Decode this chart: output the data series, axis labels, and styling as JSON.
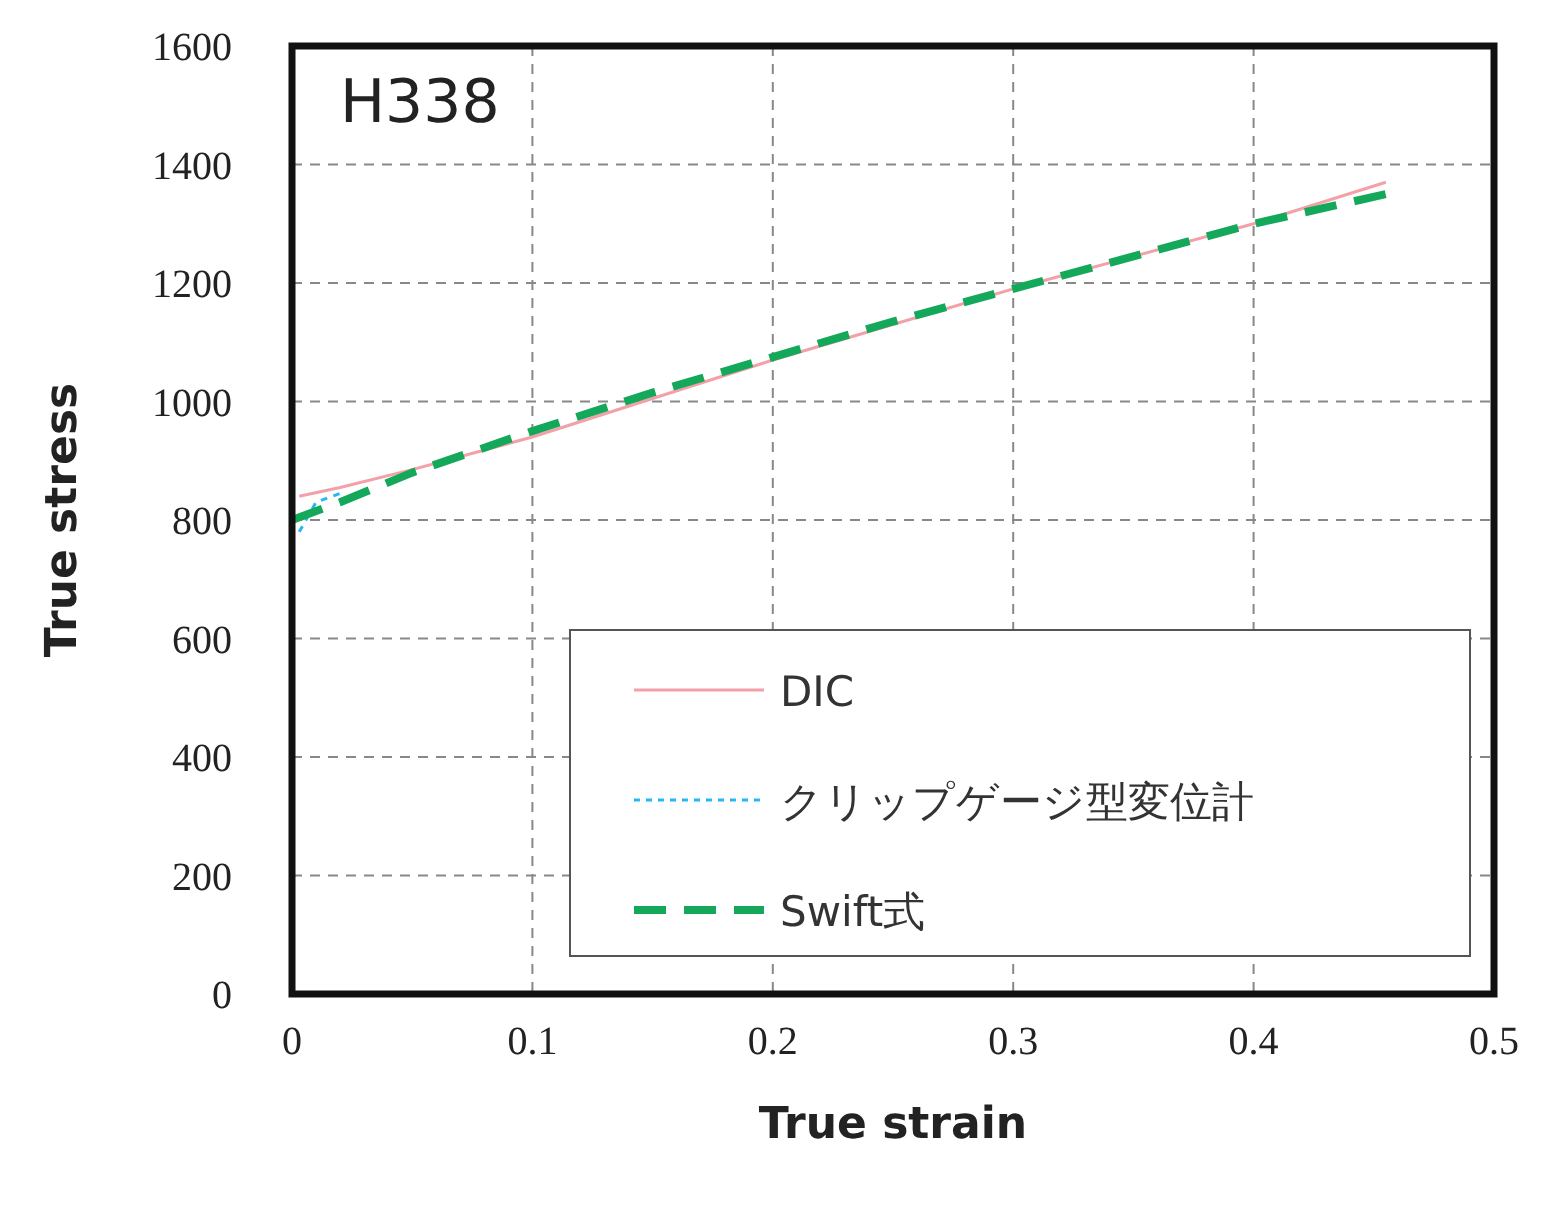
{
  "chart_data": {
    "type": "line",
    "title": "H338",
    "xlabel": "True strain",
    "ylabel": "True stress",
    "xlim": [
      0,
      0.5
    ],
    "ylim": [
      0,
      1600
    ],
    "xticks": [
      0,
      0.1,
      0.2,
      0.3,
      0.4,
      0.5
    ],
    "yticks": [
      0,
      200,
      400,
      600,
      800,
      1000,
      1200,
      1400,
      1600
    ],
    "grid": true,
    "legend": "bottom right",
    "series": [
      {
        "name": "DIC",
        "color": "#f4a0a8",
        "line_style": "solid",
        "x": [
          0.003,
          0.02,
          0.05,
          0.1,
          0.15,
          0.2,
          0.25,
          0.3,
          0.35,
          0.4,
          0.455
        ],
        "values": [
          840,
          855,
          885,
          940,
          1005,
          1070,
          1130,
          1190,
          1245,
          1300,
          1370
        ]
      },
      {
        "name": "クリップゲージ型変位計",
        "color": "#29b6f6",
        "line_style": "dotted",
        "x": [
          0.003,
          0.01,
          0.02
        ],
        "values": [
          780,
          830,
          845
        ]
      },
      {
        "name": "Swift式",
        "color": "#13a85a",
        "line_style": "dashed",
        "x": [
          0,
          0.02,
          0.05,
          0.1,
          0.15,
          0.2,
          0.25,
          0.3,
          0.35,
          0.4,
          0.455
        ],
        "values": [
          800,
          830,
          880,
          950,
          1015,
          1075,
          1135,
          1190,
          1245,
          1300,
          1350
        ]
      }
    ]
  }
}
